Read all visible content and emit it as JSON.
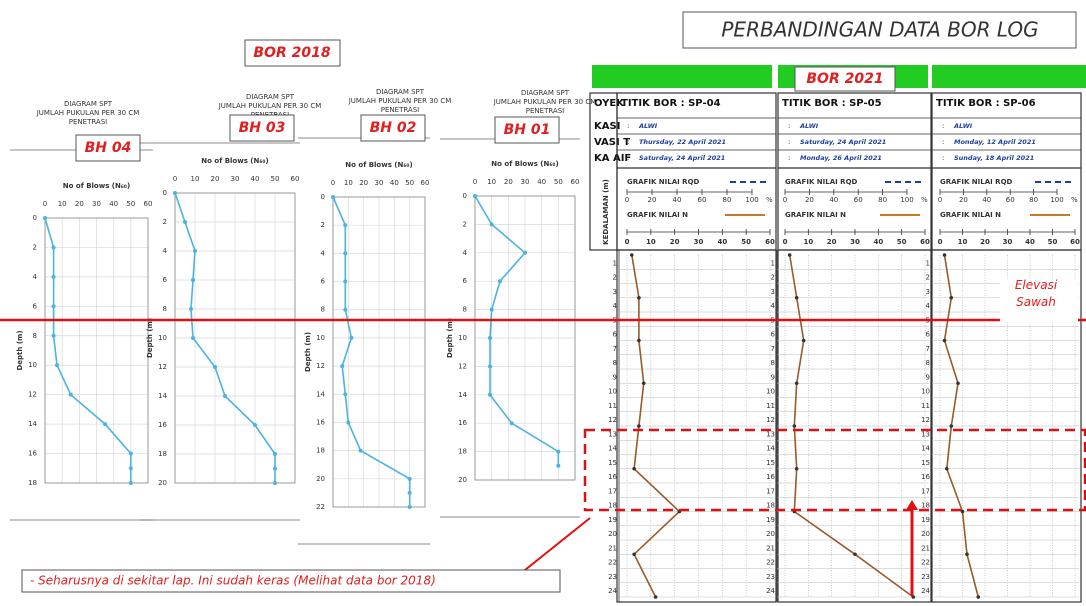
{
  "title": "PERBANDINGAN DATA BOR LOG",
  "group_2018": "BOR 2018",
  "group_2021": "BOR 2021",
  "row_labels": [
    "OYEK",
    "KASI",
    "VASI T",
    "KA AIF"
  ],
  "depth_label_2021": "KEDALAMAN (m)",
  "elevation_note": "Elevasi Sawah",
  "note": "- Seharusnya di sekitar lap. Ini sudah keras (Melihat data bor 2018)",
  "chart_data": [
    {
      "type": "line",
      "title": "DIAGRAM SPT",
      "subtitle": "JUMLAH PUKULAN PER 30 CM PENETRASI",
      "label": "BH 04",
      "xlabel": "No of Blows (N₆₀)",
      "ylabel": "Depth (m)",
      "xlim": [
        0,
        60
      ],
      "xticks": [
        0,
        10,
        20,
        30,
        40,
        50,
        60
      ],
      "ylim": [
        0,
        18
      ],
      "yticks": [
        0,
        2,
        4,
        6,
        8,
        10,
        12,
        14,
        16,
        18
      ],
      "y_reversed": true,
      "grid": true,
      "series": [
        {
          "color": "#4bb3e0",
          "x": [
            0,
            5,
            5,
            5,
            5,
            7,
            15,
            35,
            50,
            50,
            50
          ],
          "y": [
            0,
            2,
            4,
            6,
            8,
            10,
            12,
            14,
            16,
            17,
            18
          ]
        }
      ]
    },
    {
      "type": "line",
      "title": "DIAGRAM SPT",
      "subtitle": "JUMLAH PUKULAN PER 30 CM PENETRASI",
      "label": "BH 03",
      "xlabel": "No of Blows (N₆₀)",
      "ylabel": "Depth (m)",
      "xlim": [
        0,
        60
      ],
      "xticks": [
        0,
        10,
        20,
        30,
        40,
        50,
        60
      ],
      "ylim": [
        0,
        20
      ],
      "yticks": [
        0,
        2,
        4,
        6,
        8,
        10,
        12,
        14,
        16,
        18,
        20
      ],
      "y_reversed": true,
      "grid": true,
      "series": [
        {
          "color": "#4bb3e0",
          "x": [
            0,
            5,
            10,
            9,
            8,
            9,
            20,
            25,
            40,
            50,
            50,
            50
          ],
          "y": [
            0,
            2,
            4,
            6,
            8,
            10,
            12,
            14,
            16,
            18,
            19,
            20
          ]
        }
      ]
    },
    {
      "type": "line",
      "title": "DIAGRAM SPT",
      "subtitle": "JUMLAH PUKULAN PER 30 CM PENETRASI",
      "label": "BH 02",
      "xlabel": "No of Blows (N₆₀)",
      "ylabel": "Depth (m)",
      "xlim": [
        0,
        60
      ],
      "xticks": [
        0,
        10,
        20,
        30,
        40,
        50,
        60
      ],
      "ylim": [
        0,
        22
      ],
      "yticks": [
        0,
        2,
        4,
        6,
        8,
        10,
        12,
        14,
        16,
        18,
        20,
        22
      ],
      "y_reversed": true,
      "grid": true,
      "series": [
        {
          "color": "#4bb3e0",
          "x": [
            0,
            8,
            8,
            8,
            8,
            12,
            6,
            8,
            10,
            18,
            50,
            50,
            50
          ],
          "y": [
            0,
            2,
            4,
            6,
            8,
            10,
            12,
            14,
            16,
            18,
            20,
            21,
            22
          ]
        }
      ]
    },
    {
      "type": "line",
      "title": "DIAGRAM SPT",
      "subtitle": "JUMLAH PUKULAN PER 30 CM PENETRASI",
      "label": "BH 01",
      "xlabel": "No of Blows (N₆₀)",
      "ylabel": "Depth (m)",
      "xlim": [
        0,
        60
      ],
      "xticks": [
        0,
        10,
        20,
        30,
        40,
        50,
        60
      ],
      "ylim": [
        0,
        20
      ],
      "yticks": [
        0,
        2,
        4,
        6,
        8,
        10,
        12,
        14,
        16,
        18,
        20
      ],
      "y_reversed": true,
      "grid": true,
      "series": [
        {
          "color": "#4bb3e0",
          "x": [
            0,
            10,
            30,
            15,
            10,
            9,
            9,
            9,
            22,
            50,
            50
          ],
          "y": [
            0,
            2,
            4,
            6,
            8,
            10,
            12,
            14,
            16,
            18,
            19
          ]
        }
      ]
    },
    {
      "type": "log",
      "title": "TITIK BOR : SP-04",
      "info": [
        "ALWI",
        "Thursday, 22 April 2021",
        "Saturday, 24 April 2021"
      ],
      "rqd_label": "GRAFIK NILAI RQD",
      "n_label": "GRAFIK NILAI N",
      "rqd_ticks": [
        0,
        20,
        40,
        60,
        80,
        100
      ],
      "rqd_unit": "%",
      "xlim": [
        0,
        60
      ],
      "xticks": [
        0,
        10,
        20,
        30,
        40,
        50,
        60
      ],
      "ylim": [
        0,
        24
      ],
      "yticks": [
        1,
        2,
        3,
        4,
        5,
        6,
        7,
        8,
        9,
        10,
        11,
        12,
        13,
        14,
        15,
        16,
        17,
        18,
        19,
        20,
        21,
        22,
        23,
        24
      ],
      "y_reversed": true,
      "grid": true,
      "series": [
        {
          "color": "#9a5a2a",
          "x": [
            2,
            5,
            5,
            7,
            5,
            3,
            22,
            3,
            12
          ],
          "y": [
            0,
            3,
            6,
            9,
            12,
            15,
            18,
            21,
            24
          ]
        }
      ]
    },
    {
      "type": "log",
      "title": "TITIK BOR : SP-05",
      "info": [
        "ALWI",
        "Saturday, 24 April 2021",
        "Monday, 26 April 2021"
      ],
      "rqd_label": "GRAFIK NILAI RQD",
      "n_label": "GRAFIK NILAI N",
      "rqd_ticks": [
        0,
        20,
        40,
        60,
        80,
        100
      ],
      "rqd_unit": "%",
      "xlim": [
        0,
        60
      ],
      "xticks": [
        0,
        10,
        20,
        30,
        40,
        50,
        60
      ],
      "ylim": [
        0,
        24
      ],
      "yticks": [
        1,
        2,
        3,
        4,
        5,
        6,
        7,
        8,
        9,
        10,
        11,
        12,
        13,
        14,
        15,
        16,
        17,
        18,
        19,
        20,
        21,
        22,
        23,
        24
      ],
      "y_reversed": true,
      "grid": true,
      "series": [
        {
          "color": "#9a5a2a",
          "x": [
            2,
            5,
            8,
            5,
            4,
            5,
            4,
            30,
            55
          ],
          "y": [
            0,
            3,
            6,
            9,
            12,
            15,
            18,
            21,
            24
          ]
        }
      ]
    },
    {
      "type": "log",
      "title": "TITIK BOR : SP-06",
      "info": [
        "ALWI",
        "Monday, 12 April 2021",
        "Sunday, 18 April 2021"
      ],
      "rqd_label": "GRAFIK NILAI RQD",
      "n_label": "GRAFIK NILAI N",
      "rqd_ticks": [
        0,
        20,
        40,
        60,
        80,
        100
      ],
      "rqd_unit": "%",
      "xlim": [
        0,
        60
      ],
      "xticks": [
        0,
        10,
        20,
        30,
        40,
        50,
        60
      ],
      "ylim": [
        0,
        24
      ],
      "yticks": [
        1,
        2,
        3,
        4,
        5,
        6,
        7,
        8,
        9,
        10,
        11,
        12,
        13,
        14,
        15,
        16,
        17,
        18,
        19,
        20,
        21,
        22,
        23,
        24
      ],
      "y_reversed": true,
      "grid": true,
      "series": [
        {
          "color": "#9a5a2a",
          "x": [
            2,
            5,
            2,
            8,
            5,
            3,
            10,
            12,
            17
          ],
          "y": [
            0,
            3,
            6,
            9,
            12,
            15,
            18,
            21,
            24
          ]
        }
      ]
    }
  ]
}
